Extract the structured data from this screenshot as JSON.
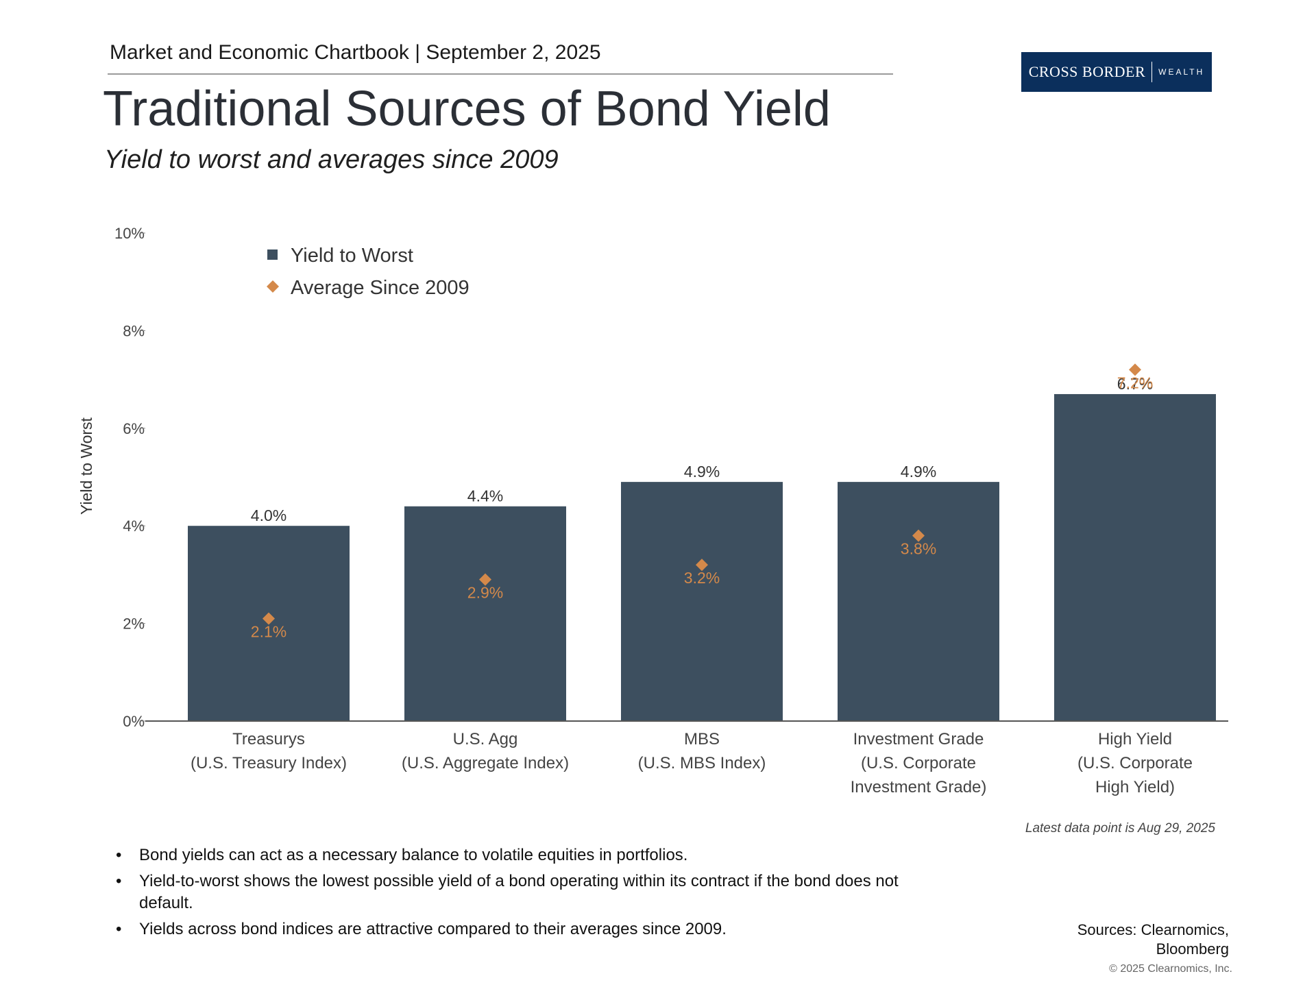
{
  "header": {
    "chartbook": "Market and Economic Chartbook | September 2, 2025",
    "logo_brand": "CROSS BORDER",
    "logo_sub": "WEALTH"
  },
  "title": "Traditional Sources of Bond Yield",
  "subtitle": "Yield to worst and averages since 2009",
  "chart_data": {
    "type": "bar",
    "ylabel": "Yield to Worst",
    "ylim": [
      0,
      10
    ],
    "yticks": [
      0,
      2,
      4,
      6,
      8,
      10
    ],
    "ytick_labels": [
      "0%",
      "2%",
      "4%",
      "6%",
      "8%",
      "10%"
    ],
    "categories": [
      [
        "Treasurys",
        "(U.S. Treasury Index)"
      ],
      [
        "U.S. Agg",
        "(U.S. Aggregate Index)"
      ],
      [
        "MBS",
        "(U.S. MBS Index)"
      ],
      [
        "Investment Grade",
        "(U.S. Corporate",
        "Investment Grade)"
      ],
      [
        "High Yield",
        "(U.S. Corporate",
        "High Yield)"
      ]
    ],
    "series": [
      {
        "name": "Yield to Worst",
        "marker": "bar",
        "color": "#3d4f5f",
        "values": [
          4.0,
          4.4,
          4.9,
          4.9,
          6.7
        ],
        "labels": [
          "4.0%",
          "4.4%",
          "4.9%",
          "4.9%",
          "6.7%"
        ]
      },
      {
        "name": "Average Since 2009",
        "marker": "diamond",
        "color": "#d4894a",
        "values": [
          2.1,
          2.9,
          3.2,
          3.8,
          7.2
        ],
        "labels": [
          "2.1%",
          "2.9%",
          "3.2%",
          "3.8%",
          "7.2%"
        ]
      }
    ],
    "legend": "top-left",
    "grid": false
  },
  "latest_note": "Latest data point is Aug 29, 2025",
  "bullets": [
    "Bond yields can act as a necessary balance to volatile equities in portfolios.",
    "Yield-to-worst shows the lowest possible yield of a bond operating within its contract if the bond does not default.",
    "Yields across bond indices are attractive compared to their averages since 2009."
  ],
  "sources": [
    "Sources: Clearnomics,",
    "Bloomberg"
  ],
  "copyright": "© 2025 Clearnomics, Inc."
}
